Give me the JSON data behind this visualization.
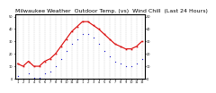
{
  "title": "Milwaukee Weather  Outdoor Temp. (vs)  Wind Chill  (Last 24 Hours)",
  "title_fontsize": 4.5,
  "background_color": "#ffffff",
  "plot_bg_color": "#ffffff",
  "grid_color": "#aaaaaa",
  "x_labels": [
    "1",
    "2",
    "3",
    "4",
    "5",
    "6",
    "7",
    "8",
    "9",
    "10",
    "11",
    "12",
    "1",
    "2",
    "3",
    "4",
    "5",
    "6",
    "7",
    "8",
    "9",
    "10",
    "11",
    "12"
  ],
  "temp_values": [
    12,
    10,
    14,
    10,
    10,
    14,
    16,
    20,
    26,
    32,
    38,
    42,
    46,
    46,
    43,
    40,
    36,
    32,
    28,
    26,
    24,
    24,
    26,
    30
  ],
  "chill_values": [
    2,
    0,
    4,
    1,
    1,
    4,
    6,
    10,
    16,
    22,
    28,
    32,
    36,
    36,
    33,
    28,
    22,
    18,
    14,
    12,
    10,
    10,
    12,
    16
  ],
  "temp_color": "#dd0000",
  "chill_color": "#0000cc",
  "ylim": [
    0,
    52
  ],
  "yticks": [
    0,
    10,
    20,
    30,
    40,
    50
  ],
  "ytick_labels": [
    "0",
    "10",
    "20",
    "30",
    "40",
    "50"
  ],
  "n_points": 24
}
